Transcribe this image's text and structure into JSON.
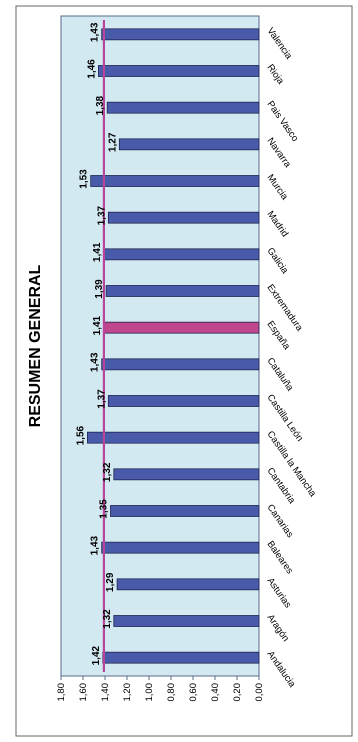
{
  "chart_data": {
    "type": "bar",
    "orientation": "horizontal",
    "rotated": "90deg-clockwise",
    "title": "RESUMEN GENERAL",
    "categories": [
      "Andalucia",
      "Aragón",
      "Asturias",
      "Baleares",
      "Canarias",
      "Cantabria",
      "Castilla la Mancha",
      "Castilla León",
      "Cataluña",
      "España",
      "Extremadura",
      "Galicia",
      "Madrid",
      "Murcia",
      "Navarra",
      "Pais Vasco",
      "Rioja",
      "Valencia"
    ],
    "values": [
      1.42,
      1.32,
      1.29,
      1.43,
      1.35,
      1.32,
      1.56,
      1.37,
      1.43,
      1.41,
      1.39,
      1.41,
      1.37,
      1.53,
      1.27,
      1.38,
      1.46,
      1.43
    ],
    "value_labels": [
      "1,42",
      "1,32",
      "1,29",
      "1,43",
      "1,35",
      "1,32",
      "1,56",
      "1,37",
      "1,43",
      "1,41",
      "1,39",
      "1,41",
      "1,37",
      "1,53",
      "1,27",
      "1,38",
      "1,46",
      "1,43"
    ],
    "highlight_category": "España",
    "reference_line_value": 1.41,
    "axis_ticks": [
      "0,00",
      "0,20",
      "0,40",
      "0,60",
      "0,80",
      "1,00",
      "1,20",
      "1,40",
      "1,60",
      "1,80"
    ],
    "xlim": [
      0,
      1.8
    ],
    "grid": false,
    "legend": "none",
    "colors": {
      "bar": "#4a5aaa",
      "bar_edge": "#1e2550",
      "highlight": "#c0478e",
      "reference_line": "#b8459a",
      "plot_bg": "#d3e9f2",
      "frame": "#5a6b88",
      "text": "#000000"
    }
  }
}
